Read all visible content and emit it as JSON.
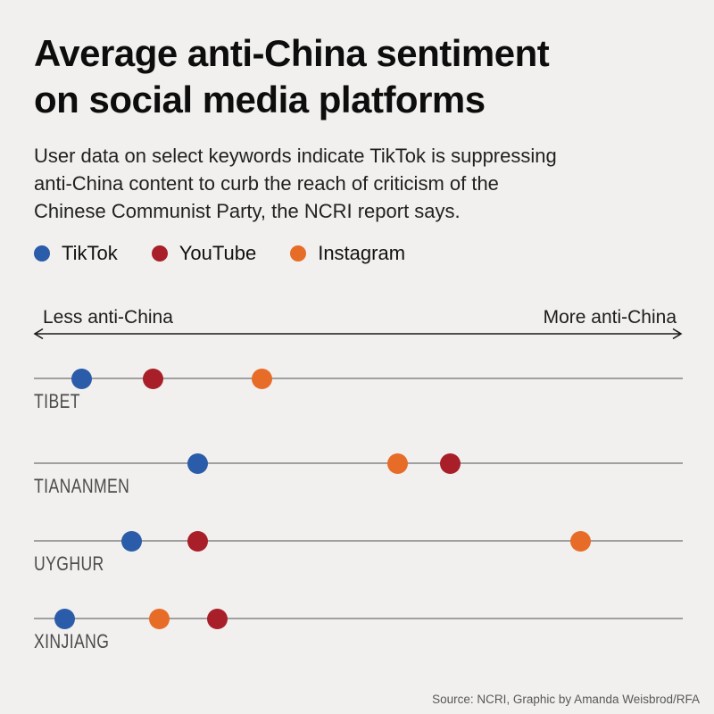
{
  "header": {
    "title_line1": "Average anti-China sentiment",
    "title_line2": "on social media platforms",
    "subtitle_line1": "User data on select keywords indicate TikTok is suppressing",
    "subtitle_line2": "anti-China content to curb the reach of criticism of the",
    "subtitle_line3": "Chinese Communist Party, the NCRI report says."
  },
  "legend": {
    "items": [
      {
        "label": "TikTok",
        "color": "#2a5caa"
      },
      {
        "label": "YouTube",
        "color": "#a81e29"
      },
      {
        "label": "Instagram",
        "color": "#e76c28"
      }
    ]
  },
  "axis": {
    "left_label": "Less anti-China",
    "right_label": "More anti-China"
  },
  "chart_data": {
    "type": "scatter",
    "title": "Average anti-China sentiment on social media platforms",
    "subtitle": "User data on select keywords indicate TikTok is suppressing anti-China content to curb the reach of criticism of the Chinese Communist Party, the NCRI report says.",
    "xlabel_left": "Less anti-China",
    "xlabel_right": "More anti-China",
    "x_axis_note": "no numeric ticks shown; values are relative positions 0-100 along the less-to-more anti-China axis",
    "xlim": [
      0,
      100
    ],
    "grid": false,
    "legend_position": "top",
    "categories": [
      "TIBET",
      "TIANANMEN",
      "UYGHUR",
      "XINJIANG"
    ],
    "series": [
      {
        "name": "TikTok",
        "color": "#2a5caa",
        "positions_pct": [
          7.4,
          25.2,
          15.1,
          4.7
        ]
      },
      {
        "name": "YouTube",
        "color": "#a81e29",
        "positions_pct": [
          18.3,
          64.2,
          25.2,
          28.2
        ]
      },
      {
        "name": "Instagram",
        "color": "#e76c28",
        "positions_pct": [
          35.2,
          56.0,
          84.3,
          19.3
        ]
      }
    ]
  },
  "footer": {
    "source": "Source: NCRI, Graphic by Amanda Weisbrod/RFA"
  },
  "colors": {
    "background": "#f1f0ee",
    "title": "#0d0d0d",
    "subtitle": "#212121",
    "row_label": "#4b4b4b",
    "row_line": "#a0a0a0",
    "arrow": "#1a1a1a",
    "source": "#585858"
  }
}
